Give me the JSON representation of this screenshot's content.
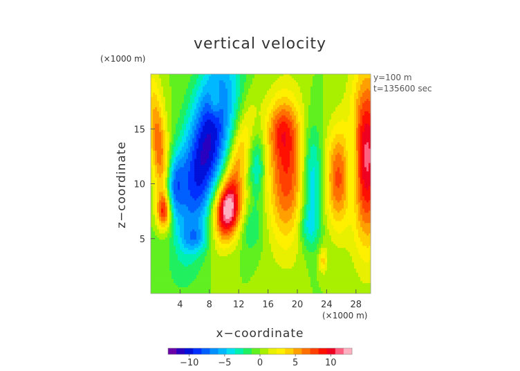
{
  "chart_data": {
    "type": "heatmap",
    "title": "vertical velocity",
    "xlabel": "x−coordinate",
    "ylabel": "z−coordinate",
    "x_unit": "(×1000 m)",
    "y_unit": "(×1000 m)",
    "annotations": [
      "y=100 m",
      "t=135600 sec"
    ],
    "xlim": [
      0,
      30
    ],
    "ylim": [
      0,
      20
    ],
    "x_ticks": [
      4,
      8,
      12,
      16,
      20,
      24,
      28
    ],
    "x_tick_labels": [
      "4",
      "8",
      "12",
      "16",
      "20",
      "24",
      "28"
    ],
    "y_ticks": [
      5,
      10,
      15
    ],
    "y_tick_labels": [
      "5",
      "10",
      "15"
    ],
    "colorbar": {
      "range": [
        -13,
        13
      ],
      "ticks": [
        -10,
        -5,
        0,
        5,
        10
      ],
      "tick_labels": [
        "−10",
        "−5",
        "0",
        "5",
        "10"
      ],
      "colors": [
        "#6a00a8",
        "#2a00c0",
        "#0010d8",
        "#0030ff",
        "#0060ff",
        "#0090ff",
        "#00b8ff",
        "#00e0f0",
        "#00f0b0",
        "#20f060",
        "#60f020",
        "#a8f000",
        "#e8f000",
        "#fff000",
        "#ffd000",
        "#ffa000",
        "#ff7000",
        "#ff4000",
        "#ff1000",
        "#f00020",
        "#ff6080",
        "#ffb0c0"
      ]
    },
    "grid": false,
    "features": [
      {
        "x": 7.5,
        "z": 13.0,
        "sx": 2.2,
        "sz": 6.0,
        "amp": -11,
        "tilt": 0.28
      },
      {
        "x": 3.0,
        "z": 9.5,
        "sx": 1.0,
        "sz": 2.2,
        "amp": -6,
        "tilt": 0.15
      },
      {
        "x": 10.5,
        "z": 7.5,
        "sx": 1.5,
        "sz": 1.8,
        "amp": 10,
        "tilt": 0.0
      },
      {
        "x": 11.5,
        "z": 11.0,
        "sx": 1.1,
        "sz": 4.0,
        "amp": 6,
        "tilt": 0.3
      },
      {
        "x": 1.2,
        "z": 13.0,
        "sx": 0.9,
        "sz": 4.5,
        "amp": 7,
        "tilt": -0.15
      },
      {
        "x": 1.8,
        "z": 7.5,
        "sx": 0.7,
        "sz": 1.2,
        "amp": 9,
        "tilt": 0.0
      },
      {
        "x": 18.5,
        "z": 11.0,
        "sx": 1.8,
        "sz": 4.5,
        "amp": 8,
        "tilt": 0.0
      },
      {
        "x": 17.8,
        "z": 15.0,
        "sx": 1.5,
        "sz": 1.8,
        "amp": 4,
        "tilt": 0.0
      },
      {
        "x": 22.0,
        "z": 10.5,
        "sx": 1.0,
        "sz": 3.5,
        "amp": -5,
        "tilt": 0.0
      },
      {
        "x": 14.5,
        "z": 11.5,
        "sx": 0.8,
        "sz": 2.2,
        "amp": -4,
        "tilt": 0.0
      },
      {
        "x": 13.5,
        "z": 6.0,
        "sx": 1.2,
        "sz": 1.5,
        "amp": -3,
        "tilt": 0.0
      },
      {
        "x": 21.5,
        "z": 6.0,
        "sx": 1.0,
        "sz": 1.4,
        "amp": -3,
        "tilt": 0.0
      },
      {
        "x": 25.5,
        "z": 10.5,
        "sx": 1.2,
        "sz": 3.2,
        "amp": 7,
        "tilt": 0.0
      },
      {
        "x": 29.5,
        "z": 12.5,
        "sx": 1.6,
        "sz": 5.5,
        "amp": 11,
        "tilt": 0.0
      },
      {
        "x": 27.5,
        "z": 11.5,
        "sx": 0.7,
        "sz": 3.0,
        "amp": -4,
        "tilt": 0.0
      },
      {
        "x": 8.8,
        "z": 17.5,
        "sx": 0.6,
        "sz": 1.0,
        "amp": 3,
        "tilt": 0.0
      },
      {
        "x": 23.5,
        "z": 3.0,
        "sx": 0.4,
        "sz": 0.8,
        "amp": 4,
        "tilt": 0.0
      },
      {
        "x": 6.0,
        "z": 5.0,
        "sx": 1.2,
        "sz": 0.8,
        "amp": -3,
        "tilt": 0.0
      }
    ]
  }
}
